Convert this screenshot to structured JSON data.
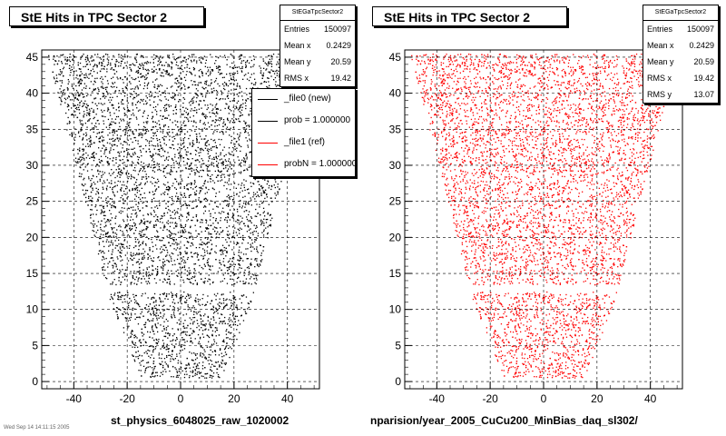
{
  "chart_data": [
    {
      "type": "scatter",
      "title": "StE Hits in TPC Sector 2",
      "xlim": [
        -52,
        52
      ],
      "ylim": [
        -1,
        46
      ],
      "x_ticks": [
        -40,
        -20,
        0,
        20,
        40
      ],
      "y_ticks": [
        0,
        5,
        10,
        15,
        20,
        25,
        30,
        35,
        40,
        45
      ],
      "y_tick_labels": [
        "0",
        "5",
        "10",
        "15",
        "20",
        "25",
        "30",
        "35",
        "40",
        "45"
      ],
      "grid": true,
      "marker_color": "#000000",
      "xlabel": "st_physics_6048025_raw_1020002",
      "stats": {
        "name": "StEGaTpcSector2",
        "rows": [
          {
            "label": "Entries",
            "value": "150097"
          },
          {
            "label": "Mean x",
            "value": "0.2429"
          },
          {
            "label": "Mean y",
            "value": "20.59"
          },
          {
            "label": "RMS x",
            "value": "19.42"
          }
        ]
      },
      "legend": {
        "position": "top-right",
        "entries": [
          {
            "label": "_file0 (new)",
            "color": "#000000"
          },
          {
            "label": "prob = 1.000000",
            "color": "#000000"
          },
          {
            "label": "_file1 (ref)",
            "color": "#ff0000"
          },
          {
            "label": "probN = 1.000000",
            "color": "#ff0000"
          }
        ]
      }
    },
    {
      "type": "scatter",
      "title": "StE Hits in TPC Sector 2",
      "xlim": [
        -52,
        52
      ],
      "ylim": [
        -1,
        46
      ],
      "x_ticks": [
        -40,
        -20,
        0,
        20,
        40
      ],
      "y_ticks": [
        0,
        5,
        10,
        15,
        20,
        25,
        30,
        35,
        40,
        45
      ],
      "y_tick_labels": [
        "0",
        "5",
        "10",
        "15",
        "20",
        "25",
        "30",
        "35",
        "40",
        "45"
      ],
      "grid": true,
      "marker_color": "#ff0000",
      "xlabel": "nparision/year_2005_CuCu200_MinBias_daq_sl302/",
      "stats": {
        "name": "StEGaTpcSector2",
        "rows": [
          {
            "label": "Entries",
            "value": "150097"
          },
          {
            "label": "Mean x",
            "value": "0.2429"
          },
          {
            "label": "Mean y",
            "value": "20.59"
          },
          {
            "label": "RMS x",
            "value": "19.42"
          },
          {
            "label": "RMS y",
            "value": "13.07"
          }
        ]
      }
    }
  ],
  "footer_stamp": "Wed Sep 14 14:11:15 2005"
}
